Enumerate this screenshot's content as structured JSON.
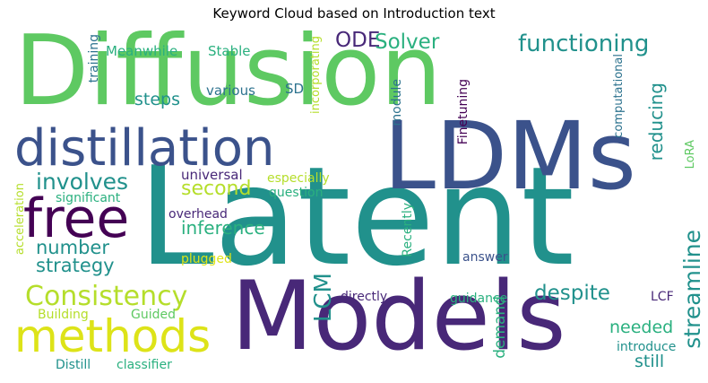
{
  "title": "Keyword Cloud based on Introduction text",
  "words": {
    "diffusion": "Diffusion",
    "latent": "Latent",
    "ldms": "LDMs",
    "models": "Models",
    "distillation": "distillation",
    "free": "free",
    "methods": "methods",
    "consistency": "Consistency",
    "functioning": "functioning",
    "ode": "ODE",
    "solver": "Solver",
    "involves": "involves",
    "second": "second",
    "inference": "inference",
    "number": "number",
    "strategy": "strategy",
    "lcm": "LCM",
    "despite": "despite",
    "streamline": "streamline",
    "reducing": "reducing",
    "needed": "needed",
    "still": "still",
    "introduce": "introduce",
    "steps": "steps",
    "various": "various",
    "sd": "SD",
    "meanwhile": "Meanwhile",
    "stable": "Stable",
    "training": "training",
    "incorporating": "incorporating",
    "module": "module",
    "finetuning": "Finetuning",
    "computational": "computational",
    "lora": "LoRA",
    "universal": "universal",
    "especially": "especially",
    "question": "question",
    "significant": "significant",
    "overhead": "overhead",
    "recently": "Recently",
    "acceleration": "acceleration",
    "plugged": "plugged",
    "answer": "answer",
    "directly": "directly",
    "guidance": "guidance",
    "lcf": "LCF",
    "demand": "demand",
    "building": "Building",
    "guided": "Guided",
    "distill": "Distill",
    "classifier": "classifier"
  },
  "colors": {
    "light_green": "#5ec962",
    "yellow_green": "#b5de2b",
    "yellow": "#dde318",
    "teal": "#21918c",
    "teal_light": "#2ab07f",
    "blue": "#3b528b",
    "blue_teal": "#31688e",
    "dark_purple": "#440154",
    "purple": "#482878",
    "slate": "#2c728e"
  }
}
